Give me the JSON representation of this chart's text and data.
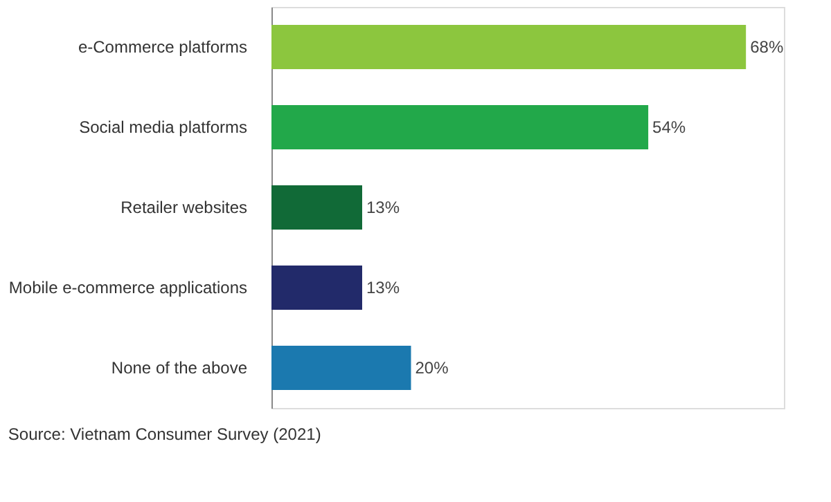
{
  "chart_data": {
    "type": "bar",
    "orientation": "horizontal",
    "categories": [
      "e-Commerce platforms",
      "Social media platforms",
      "Retailer websites",
      "Mobile e-commerce applications",
      "None of the above"
    ],
    "values": [
      68,
      54,
      13,
      13,
      20
    ],
    "colors": [
      "#8cc63e",
      "#22a84a",
      "#116a37",
      "#222a6a",
      "#1b79af"
    ],
    "value_labels": [
      "68%",
      "54%",
      "13%",
      "13%",
      "20%"
    ],
    "annotations": [
      "Source: Vietnam Consumer Survey (2021)"
    ]
  }
}
